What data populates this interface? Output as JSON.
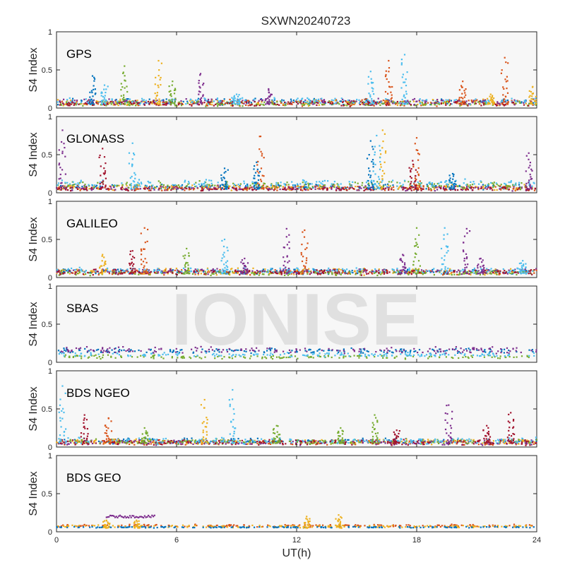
{
  "title": "SXWN20240723",
  "watermark": "IONISE",
  "chart_data": {
    "type": "scatter",
    "xlabel": "UT(h)",
    "ylabel": "S4 Index",
    "xlim": [
      0,
      24
    ],
    "ylim": [
      0,
      1
    ],
    "xticks": [
      0,
      6,
      12,
      18,
      24
    ],
    "yticks": [
      0,
      0.5,
      1
    ],
    "ytick_labels": [
      "0",
      "0.5",
      "1"
    ],
    "grid": false,
    "series_colors": [
      "#0072bd",
      "#d95319",
      "#edb120",
      "#7e2f8e",
      "#77ac30",
      "#4dbeee",
      "#a2142f"
    ],
    "panels": [
      {
        "name": "GPS",
        "baselines": [
          {
            "color": 0,
            "level": 0.08,
            "spread": 0.05
          },
          {
            "color": 1,
            "level": 0.07,
            "spread": 0.05
          },
          {
            "color": 2,
            "level": 0.07,
            "spread": 0.05
          },
          {
            "color": 3,
            "level": 0.08,
            "spread": 0.05
          },
          {
            "color": 4,
            "level": 0.06,
            "spread": 0.04
          },
          {
            "color": 5,
            "level": 0.09,
            "spread": 0.05
          },
          {
            "color": 6,
            "level": 0.06,
            "spread": 0.04
          }
        ],
        "spikes": [
          {
            "t": 1.8,
            "peak": 0.42,
            "color": 0
          },
          {
            "t": 2.4,
            "peak": 0.3,
            "color": 5
          },
          {
            "t": 3.4,
            "peak": 0.55,
            "color": 4
          },
          {
            "t": 5.1,
            "peak": 0.62,
            "color": 2
          },
          {
            "t": 5.8,
            "peak": 0.35,
            "color": 4
          },
          {
            "t": 7.2,
            "peak": 0.45,
            "color": 3
          },
          {
            "t": 9.0,
            "peak": 0.18,
            "color": 5
          },
          {
            "t": 10.6,
            "peak": 0.25,
            "color": 3
          },
          {
            "t": 15.7,
            "peak": 0.48,
            "color": 5
          },
          {
            "t": 16.6,
            "peak": 0.62,
            "color": 1
          },
          {
            "t": 17.4,
            "peak": 0.7,
            "color": 5
          },
          {
            "t": 20.3,
            "peak": 0.35,
            "color": 1
          },
          {
            "t": 21.7,
            "peak": 0.18,
            "color": 2
          },
          {
            "t": 22.4,
            "peak": 0.66,
            "color": 1
          },
          {
            "t": 23.8,
            "peak": 0.28,
            "color": 2
          }
        ]
      },
      {
        "name": "GLONASS",
        "baselines": [
          {
            "color": 0,
            "level": 0.08,
            "spread": 0.04
          },
          {
            "color": 1,
            "level": 0.06,
            "spread": 0.04
          },
          {
            "color": 2,
            "level": 0.07,
            "spread": 0.04
          },
          {
            "color": 3,
            "level": 0.06,
            "spread": 0.04
          },
          {
            "color": 4,
            "level": 0.1,
            "spread": 0.06
          },
          {
            "color": 5,
            "level": 0.12,
            "spread": 0.06
          },
          {
            "color": 6,
            "level": 0.05,
            "spread": 0.03
          }
        ],
        "spikes": [
          {
            "t": 0.3,
            "peak": 0.82,
            "color": 3
          },
          {
            "t": 2.3,
            "peak": 0.58,
            "color": 6
          },
          {
            "t": 3.8,
            "peak": 0.65,
            "color": 5
          },
          {
            "t": 8.4,
            "peak": 0.32,
            "color": 0
          },
          {
            "t": 10.2,
            "peak": 0.74,
            "color": 1
          },
          {
            "t": 10.0,
            "peak": 0.4,
            "color": 0
          },
          {
            "t": 15.7,
            "peak": 0.68,
            "color": 0
          },
          {
            "t": 16.3,
            "peak": 0.82,
            "color": 2
          },
          {
            "t": 16.0,
            "peak": 0.75,
            "color": 5
          },
          {
            "t": 18.0,
            "peak": 0.72,
            "color": 1
          },
          {
            "t": 17.8,
            "peak": 0.42,
            "color": 6
          },
          {
            "t": 19.8,
            "peak": 0.25,
            "color": 0
          },
          {
            "t": 23.6,
            "peak": 0.52,
            "color": 3
          }
        ]
      },
      {
        "name": "GALILEO",
        "baselines": [
          {
            "color": 0,
            "level": 0.08,
            "spread": 0.04
          },
          {
            "color": 1,
            "level": 0.07,
            "spread": 0.04
          },
          {
            "color": 2,
            "level": 0.08,
            "spread": 0.05
          },
          {
            "color": 3,
            "level": 0.08,
            "spread": 0.04
          },
          {
            "color": 4,
            "level": 0.06,
            "spread": 0.04
          },
          {
            "color": 5,
            "level": 0.09,
            "spread": 0.05
          },
          {
            "color": 6,
            "level": 0.07,
            "spread": 0.04
          }
        ],
        "spikes": [
          {
            "t": 2.3,
            "peak": 0.3,
            "color": 2
          },
          {
            "t": 3.8,
            "peak": 0.35,
            "color": 6
          },
          {
            "t": 4.4,
            "peak": 0.65,
            "color": 1
          },
          {
            "t": 6.5,
            "peak": 0.38,
            "color": 4
          },
          {
            "t": 8.4,
            "peak": 0.5,
            "color": 5
          },
          {
            "t": 9.4,
            "peak": 0.25,
            "color": 3
          },
          {
            "t": 11.5,
            "peak": 0.64,
            "color": 3
          },
          {
            "t": 12.4,
            "peak": 0.62,
            "color": 1
          },
          {
            "t": 17.3,
            "peak": 0.3,
            "color": 3
          },
          {
            "t": 18.0,
            "peak": 0.65,
            "color": 4
          },
          {
            "t": 19.4,
            "peak": 0.65,
            "color": 5
          },
          {
            "t": 20.5,
            "peak": 0.64,
            "color": 3
          },
          {
            "t": 21.2,
            "peak": 0.25,
            "color": 3
          },
          {
            "t": 23.3,
            "peak": 0.22,
            "color": 5
          }
        ]
      },
      {
        "name": "SBAS",
        "baselines": [
          {
            "color": 0,
            "level": 0.15,
            "spread": 0.04
          },
          {
            "color": 3,
            "level": 0.16,
            "spread": 0.05
          },
          {
            "color": 4,
            "level": 0.07,
            "spread": 0.03
          },
          {
            "color": 5,
            "level": 0.1,
            "spread": 0.03
          }
        ],
        "spikes": []
      },
      {
        "name": "BDS NGEO",
        "baselines": [
          {
            "color": 0,
            "level": 0.08,
            "spread": 0.04
          },
          {
            "color": 1,
            "level": 0.06,
            "spread": 0.04
          },
          {
            "color": 2,
            "level": 0.07,
            "spread": 0.04
          },
          {
            "color": 3,
            "level": 0.06,
            "spread": 0.04
          },
          {
            "color": 4,
            "level": 0.07,
            "spread": 0.04
          },
          {
            "color": 5,
            "level": 0.08,
            "spread": 0.05
          },
          {
            "color": 6,
            "level": 0.06,
            "spread": 0.04
          }
        ],
        "spikes": [
          {
            "t": 0.3,
            "peak": 0.8,
            "color": 5
          },
          {
            "t": 1.4,
            "peak": 0.42,
            "color": 6
          },
          {
            "t": 2.6,
            "peak": 0.38,
            "color": 1
          },
          {
            "t": 4.4,
            "peak": 0.25,
            "color": 4
          },
          {
            "t": 7.4,
            "peak": 0.62,
            "color": 2
          },
          {
            "t": 8.8,
            "peak": 0.75,
            "color": 5
          },
          {
            "t": 11.0,
            "peak": 0.28,
            "color": 4
          },
          {
            "t": 14.2,
            "peak": 0.25,
            "color": 4
          },
          {
            "t": 15.9,
            "peak": 0.42,
            "color": 4
          },
          {
            "t": 17.0,
            "peak": 0.22,
            "color": 6
          },
          {
            "t": 19.6,
            "peak": 0.55,
            "color": 3
          },
          {
            "t": 21.5,
            "peak": 0.28,
            "color": 6
          },
          {
            "t": 22.7,
            "peak": 0.45,
            "color": 6
          }
        ]
      },
      {
        "name": "BDS GEO",
        "baselines": [
          {
            "color": 1,
            "level": 0.08,
            "spread": 0.02
          },
          {
            "color": 2,
            "level": 0.07,
            "spread": 0.02
          },
          {
            "color": 0,
            "level": 0.06,
            "spread": 0.01
          }
        ],
        "spikes": [
          {
            "t": 2.5,
            "peak": 0.15,
            "color": 2
          },
          {
            "t": 4.0,
            "peak": 0.15,
            "color": 2
          },
          {
            "t": 12.5,
            "peak": 0.2,
            "color": 2
          },
          {
            "t": 14.1,
            "peak": 0.22,
            "color": 2
          }
        ],
        "segments": [
          {
            "t0": 2.5,
            "t1": 4.9,
            "level": 0.2,
            "color": 3
          }
        ]
      }
    ]
  }
}
